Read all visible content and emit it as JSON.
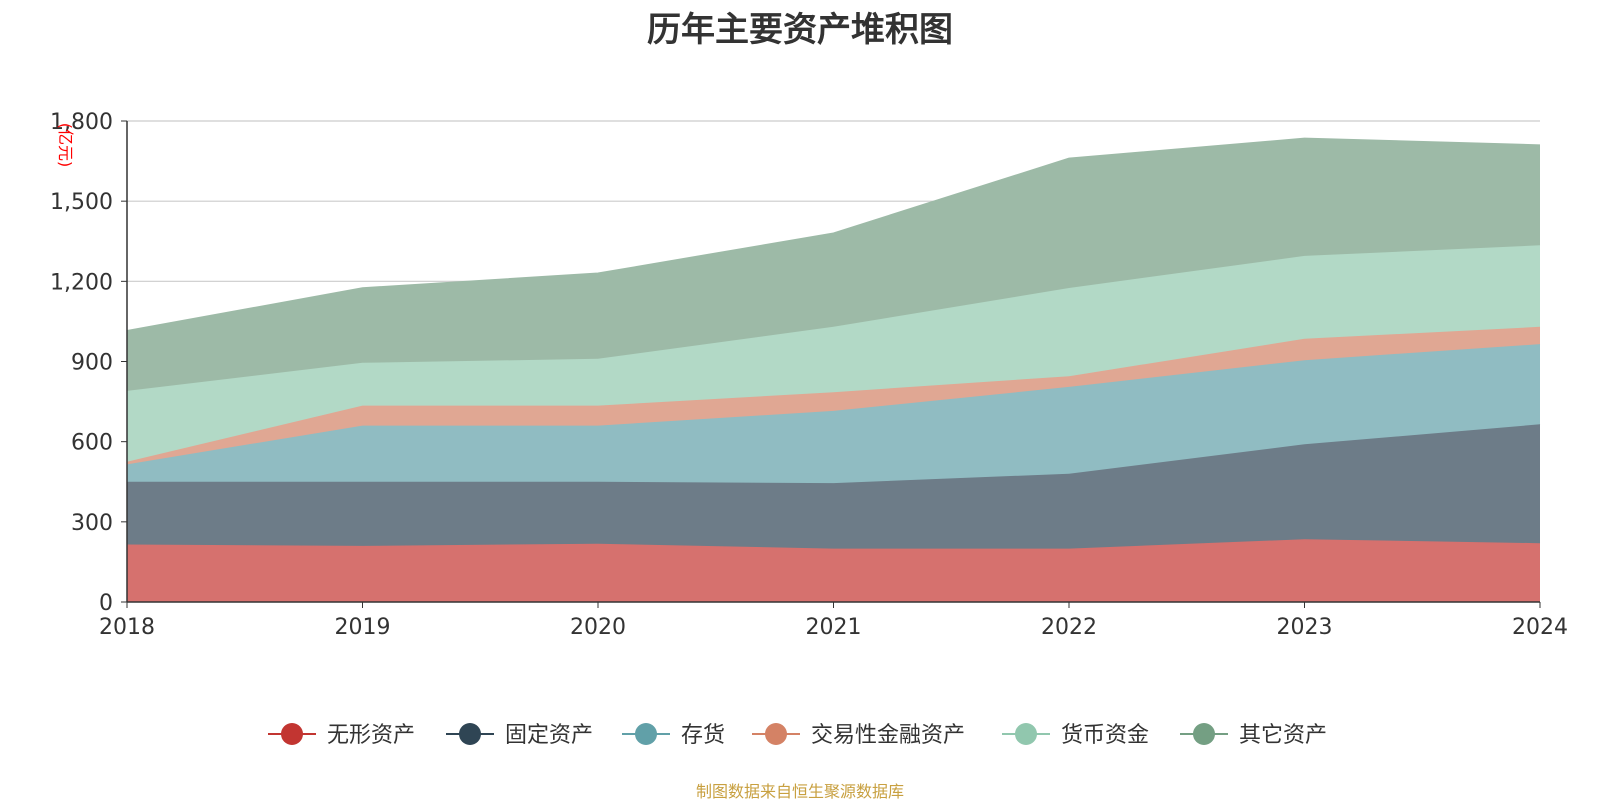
{
  "chart_data": {
    "type": "area",
    "title": "历年主要资产堆积图",
    "unit_label": "(亿元)",
    "source": "制图数据来自恒生聚源数据库",
    "categories": [
      "2018",
      "2019",
      "2020",
      "2021",
      "2022",
      "2023",
      "2024"
    ],
    "stacked": true,
    "ylim": [
      0,
      1800
    ],
    "yticks": [
      0,
      300,
      600,
      900,
      1200,
      1500,
      1800
    ],
    "ytick_labels": [
      "0",
      "300",
      "600",
      "900",
      "1,200",
      "1,500",
      "1,800"
    ],
    "grid": true,
    "legend_position": "bottom",
    "series": [
      {
        "name": "无形资产",
        "color": "#c23531",
        "fill": "#d6716e",
        "values": [
          215,
          210,
          218,
          200,
          200,
          235,
          220
        ]
      },
      {
        "name": "固定资产",
        "color": "#2f4554",
        "fill": "#6d7c88",
        "values": [
          235,
          240,
          232,
          245,
          280,
          355,
          445
        ]
      },
      {
        "name": "存货",
        "color": "#61a0a8",
        "fill": "#90bcc2",
        "values": [
          65,
          210,
          210,
          270,
          325,
          315,
          300
        ]
      },
      {
        "name": "交易性金融资产",
        "color": "#d48265",
        "fill": "#e0a793",
        "values": [
          10,
          75,
          75,
          70,
          40,
          80,
          65
        ]
      },
      {
        "name": "货币资金",
        "color": "#91c7ae",
        "fill": "#b2d9c6",
        "values": [
          265,
          160,
          175,
          245,
          330,
          310,
          305
        ]
      },
      {
        "name": "其它资产",
        "color": "#749f83",
        "fill": "#9dbaa7",
        "values": [
          225,
          280,
          320,
          350,
          485,
          440,
          375
        ]
      }
    ]
  }
}
